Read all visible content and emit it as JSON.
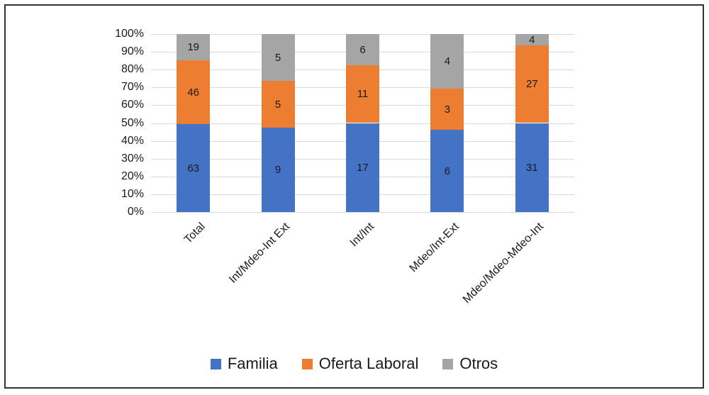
{
  "chart_data": {
    "type": "bar",
    "variant": "stacked-100-percent",
    "title": "",
    "xlabel": "",
    "ylabel": "",
    "categories": [
      "Total",
      "Int/Mdeo-Int Ext",
      "Int/Int",
      "Mdeo/Int-Ext",
      "Mdeo/Mdeo-Mdeo-Int"
    ],
    "series": [
      {
        "name": "Familia",
        "color": "#4472C4",
        "values": [
          63,
          9,
          17,
          6,
          31
        ]
      },
      {
        "name": "Oferta Laboral",
        "color": "#ED7D31",
        "values": [
          46,
          5,
          11,
          3,
          27
        ]
      },
      {
        "name": "Otros",
        "color": "#A5A5A5",
        "values": [
          19,
          5,
          6,
          4,
          4
        ]
      }
    ],
    "y_ticks": [
      "0%",
      "10%",
      "20%",
      "30%",
      "40%",
      "50%",
      "60%",
      "70%",
      "80%",
      "90%",
      "100%"
    ],
    "ylim": [
      0,
      100
    ],
    "grid": true,
    "legend_position": "bottom"
  },
  "colors": {
    "gridline": "#d9d9d9",
    "text": "#1a1a1a",
    "frame_border": "#333333",
    "background": "#ffffff"
  }
}
